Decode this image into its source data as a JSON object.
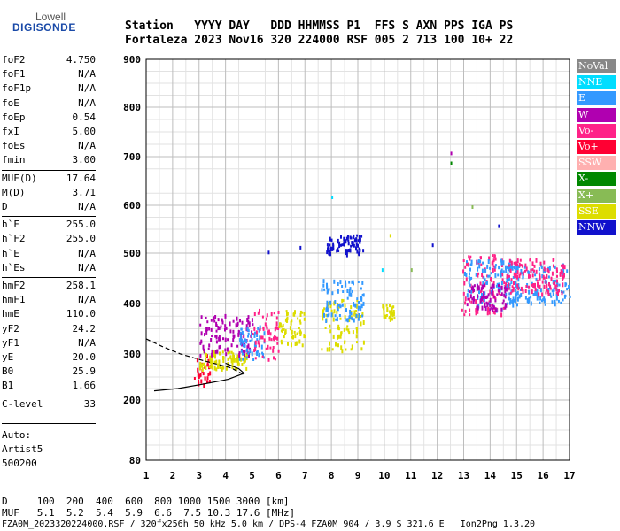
{
  "logo": {
    "line1": "Lowell",
    "line2": "DIGISONDE"
  },
  "header": {
    "row1": "Station   YYYY DAY   DDD HHMMSS P1  FFS S AXN PPS IGA PS",
    "row2": "Fortaleza 2023 Nov16 320 224000 RSF 005 2 713 100 10+ 22"
  },
  "params": [
    [
      {
        "k": "foF2",
        "v": "4.750"
      },
      {
        "k": "foF1",
        "v": "N/A"
      },
      {
        "k": "foF1p",
        "v": "N/A"
      },
      {
        "k": "foE",
        "v": "N/A"
      },
      {
        "k": "foEp",
        "v": "0.54"
      },
      {
        "k": "fxI",
        "v": "5.00"
      },
      {
        "k": "foEs",
        "v": "N/A"
      },
      {
        "k": "fmin",
        "v": "3.00"
      }
    ],
    [
      {
        "k": "MUF(D)",
        "v": "17.64"
      },
      {
        "k": "M(D)",
        "v": "3.71"
      },
      {
        "k": "D",
        "v": "N/A"
      }
    ],
    [
      {
        "k": "h`F",
        "v": "255.0"
      },
      {
        "k": "h`F2",
        "v": "255.0"
      },
      {
        "k": "h`E",
        "v": "N/A"
      },
      {
        "k": "h`Es",
        "v": "N/A"
      }
    ],
    [
      {
        "k": "hmF2",
        "v": "258.1"
      },
      {
        "k": "hmF1",
        "v": "N/A"
      },
      {
        "k": "hmE",
        "v": "110.0"
      },
      {
        "k": "yF2",
        "v": "24.2"
      },
      {
        "k": "yF1",
        "v": "N/A"
      },
      {
        "k": "yE",
        "v": "20.0"
      },
      {
        "k": "B0",
        "v": "25.9"
      },
      {
        "k": "B1",
        "v": "1.66"
      }
    ],
    [
      {
        "k": "C-level",
        "v": "33"
      }
    ]
  ],
  "autoscale": {
    "line1": "Auto:",
    "line2": "Artist5",
    "line3": "500200"
  },
  "legend": [
    {
      "label": "NoVal",
      "color": "#888888"
    },
    {
      "label": "NNE",
      "color": "#00ddff"
    },
    {
      "label": "E",
      "color": "#3399ff"
    },
    {
      "label": "W",
      "color": "#b000b0"
    },
    {
      "label": "Vo-",
      "color": "#ff2288"
    },
    {
      "label": "Vo+",
      "color": "#ff0033"
    },
    {
      "label": "SSW",
      "color": "#ffb0b0"
    },
    {
      "label": "X-",
      "color": "#008800"
    },
    {
      "label": "X+",
      "color": "#88bb55"
    },
    {
      "label": "SSE",
      "color": "#dddd00"
    },
    {
      "label": "NNW",
      "color": "#1111cc"
    }
  ],
  "chart_data": {
    "type": "scatter",
    "xlim": [
      1,
      17
    ],
    "ylim": [
      80,
      900
    ],
    "xticks": [
      1,
      2,
      3,
      4,
      5,
      6,
      7,
      8,
      9,
      10,
      11,
      12,
      13,
      14,
      15,
      16,
      17
    ],
    "yticks": [
      80,
      200,
      300,
      400,
      500,
      600,
      700,
      800,
      900
    ],
    "grid": true,
    "legend_position": "right",
    "clusters": [
      {
        "x": [
          2.8,
          3.4
        ],
        "y": [
          230,
          300
        ],
        "color": "#ff0033"
      },
      {
        "x": [
          3.0,
          4.8
        ],
        "y": [
          270,
          310
        ],
        "color": "#dddd00"
      },
      {
        "x": [
          3.0,
          5.0
        ],
        "y": [
          300,
          380
        ],
        "color": "#b000b0"
      },
      {
        "x": [
          4.5,
          5.5
        ],
        "y": [
          290,
          360
        ],
        "color": "#3399ff"
      },
      {
        "x": [
          5.0,
          6.0
        ],
        "y": [
          290,
          390
        ],
        "color": "#ff2288"
      },
      {
        "x": [
          6.0,
          7.0
        ],
        "y": [
          320,
          390
        ],
        "color": "#dddd00"
      },
      {
        "x": [
          7.6,
          9.2
        ],
        "y": [
          310,
          410
        ],
        "color": "#dddd00"
      },
      {
        "x": [
          7.6,
          9.2
        ],
        "y": [
          370,
          450
        ],
        "color": "#3399ff"
      },
      {
        "x": [
          7.8,
          9.2
        ],
        "y": [
          500,
          540
        ],
        "color": "#1111cc"
      },
      {
        "x": [
          9.9,
          10.4
        ],
        "y": [
          370,
          400
        ],
        "color": "#dddd00"
      },
      {
        "x": [
          12.9,
          14.5
        ],
        "y": [
          380,
          500
        ],
        "color": "#ff2288"
      },
      {
        "x": [
          13.0,
          15.0
        ],
        "y": [
          390,
          490
        ],
        "color": "#3399ff"
      },
      {
        "x": [
          13.1,
          14.6
        ],
        "y": [
          390,
          440
        ],
        "color": "#b000b0"
      },
      {
        "x": [
          14.6,
          17.0
        ],
        "y": [
          400,
          480
        ],
        "color": "#3399ff"
      },
      {
        "x": [
          14.5,
          16.8
        ],
        "y": [
          420,
          490
        ],
        "color": "#ff2288"
      }
    ],
    "points": [
      {
        "x": 12.5,
        "y": 710,
        "color": "#b000b0"
      },
      {
        "x": 12.5,
        "y": 690,
        "color": "#008800"
      },
      {
        "x": 8.0,
        "y": 620,
        "color": "#00ddff"
      },
      {
        "x": 5.6,
        "y": 505,
        "color": "#1111cc"
      },
      {
        "x": 6.8,
        "y": 515,
        "color": "#1111cc"
      },
      {
        "x": 9.9,
        "y": 470,
        "color": "#00ddff"
      },
      {
        "x": 11.8,
        "y": 520,
        "color": "#1111cc"
      },
      {
        "x": 13.3,
        "y": 600,
        "color": "#88bb55"
      },
      {
        "x": 14.3,
        "y": 560,
        "color": "#1111cc"
      },
      {
        "x": 10.2,
        "y": 540,
        "color": "#dddd00"
      },
      {
        "x": 11.0,
        "y": 470,
        "color": "#88bb55"
      }
    ],
    "profile_curves": [
      {
        "x": [
          1.0,
          1.6,
          2.3,
          3.2,
          4.2,
          4.7
        ],
        "y": [
          330,
          315,
          300,
          285,
          270,
          255
        ]
      },
      {
        "x": [
          1.3,
          2.2,
          3.2,
          4.1,
          4.7,
          4.5,
          4.0
        ],
        "y": [
          220,
          225,
          235,
          245,
          258,
          268,
          280
        ]
      }
    ]
  },
  "footer": {
    "line1": "D     100  200  400  600  800 1000 1500 3000 [km]",
    "line2": "MUF   5.1  5.2  5.4  5.9  6.6  7.5 10.3 17.6 [MHz]",
    "line3": "FZA0M_2023320224000.RSF / 320fx256h 50 kHz 5.0 km / DPS-4 FZA0M 904 / 3.9 S 321.6 E   Ion2Png 1.3.20"
  }
}
